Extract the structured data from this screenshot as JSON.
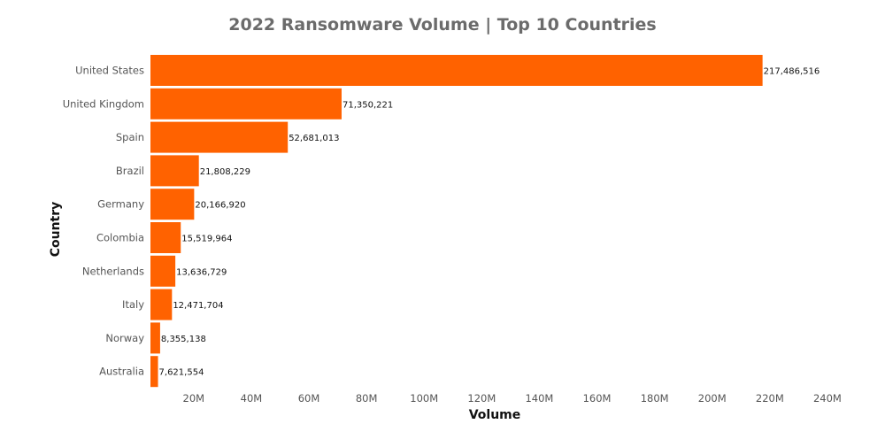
{
  "chart_data": {
    "type": "bar",
    "orientation": "horizontal",
    "title": "2022 Ransomware Volume | Top 10 Countries",
    "xlabel": "Volume",
    "ylabel": "Country",
    "categories": [
      "United States",
      "United Kingdom",
      "Spain",
      "Brazil",
      "Germany",
      "Colombia",
      "Netherlands",
      "Italy",
      "Norway",
      "Australia"
    ],
    "values": [
      217486516,
      71350221,
      52681013,
      21808229,
      20166920,
      15519964,
      13636729,
      12471704,
      8355138,
      7621554
    ],
    "value_labels": [
      "217,486,516",
      "71,350,221",
      "52,681,013",
      "21,808,229",
      "20,166,920",
      "15,519,964",
      "13,636,729",
      "12,471,704",
      "8,355,138",
      "7,621,554"
    ],
    "x_ticks": [
      20000000,
      40000000,
      60000000,
      80000000,
      100000000,
      120000000,
      140000000,
      160000000,
      180000000,
      200000000,
      220000000,
      240000000
    ],
    "x_tick_labels": [
      "20M",
      "40M",
      "60M",
      "80M",
      "100M",
      "120M",
      "140M",
      "160M",
      "180M",
      "200M",
      "220M",
      "240M"
    ],
    "xlim": [
      0,
      240000000
    ],
    "grid": false,
    "legend": "none",
    "bar_color": "#ff6200"
  }
}
